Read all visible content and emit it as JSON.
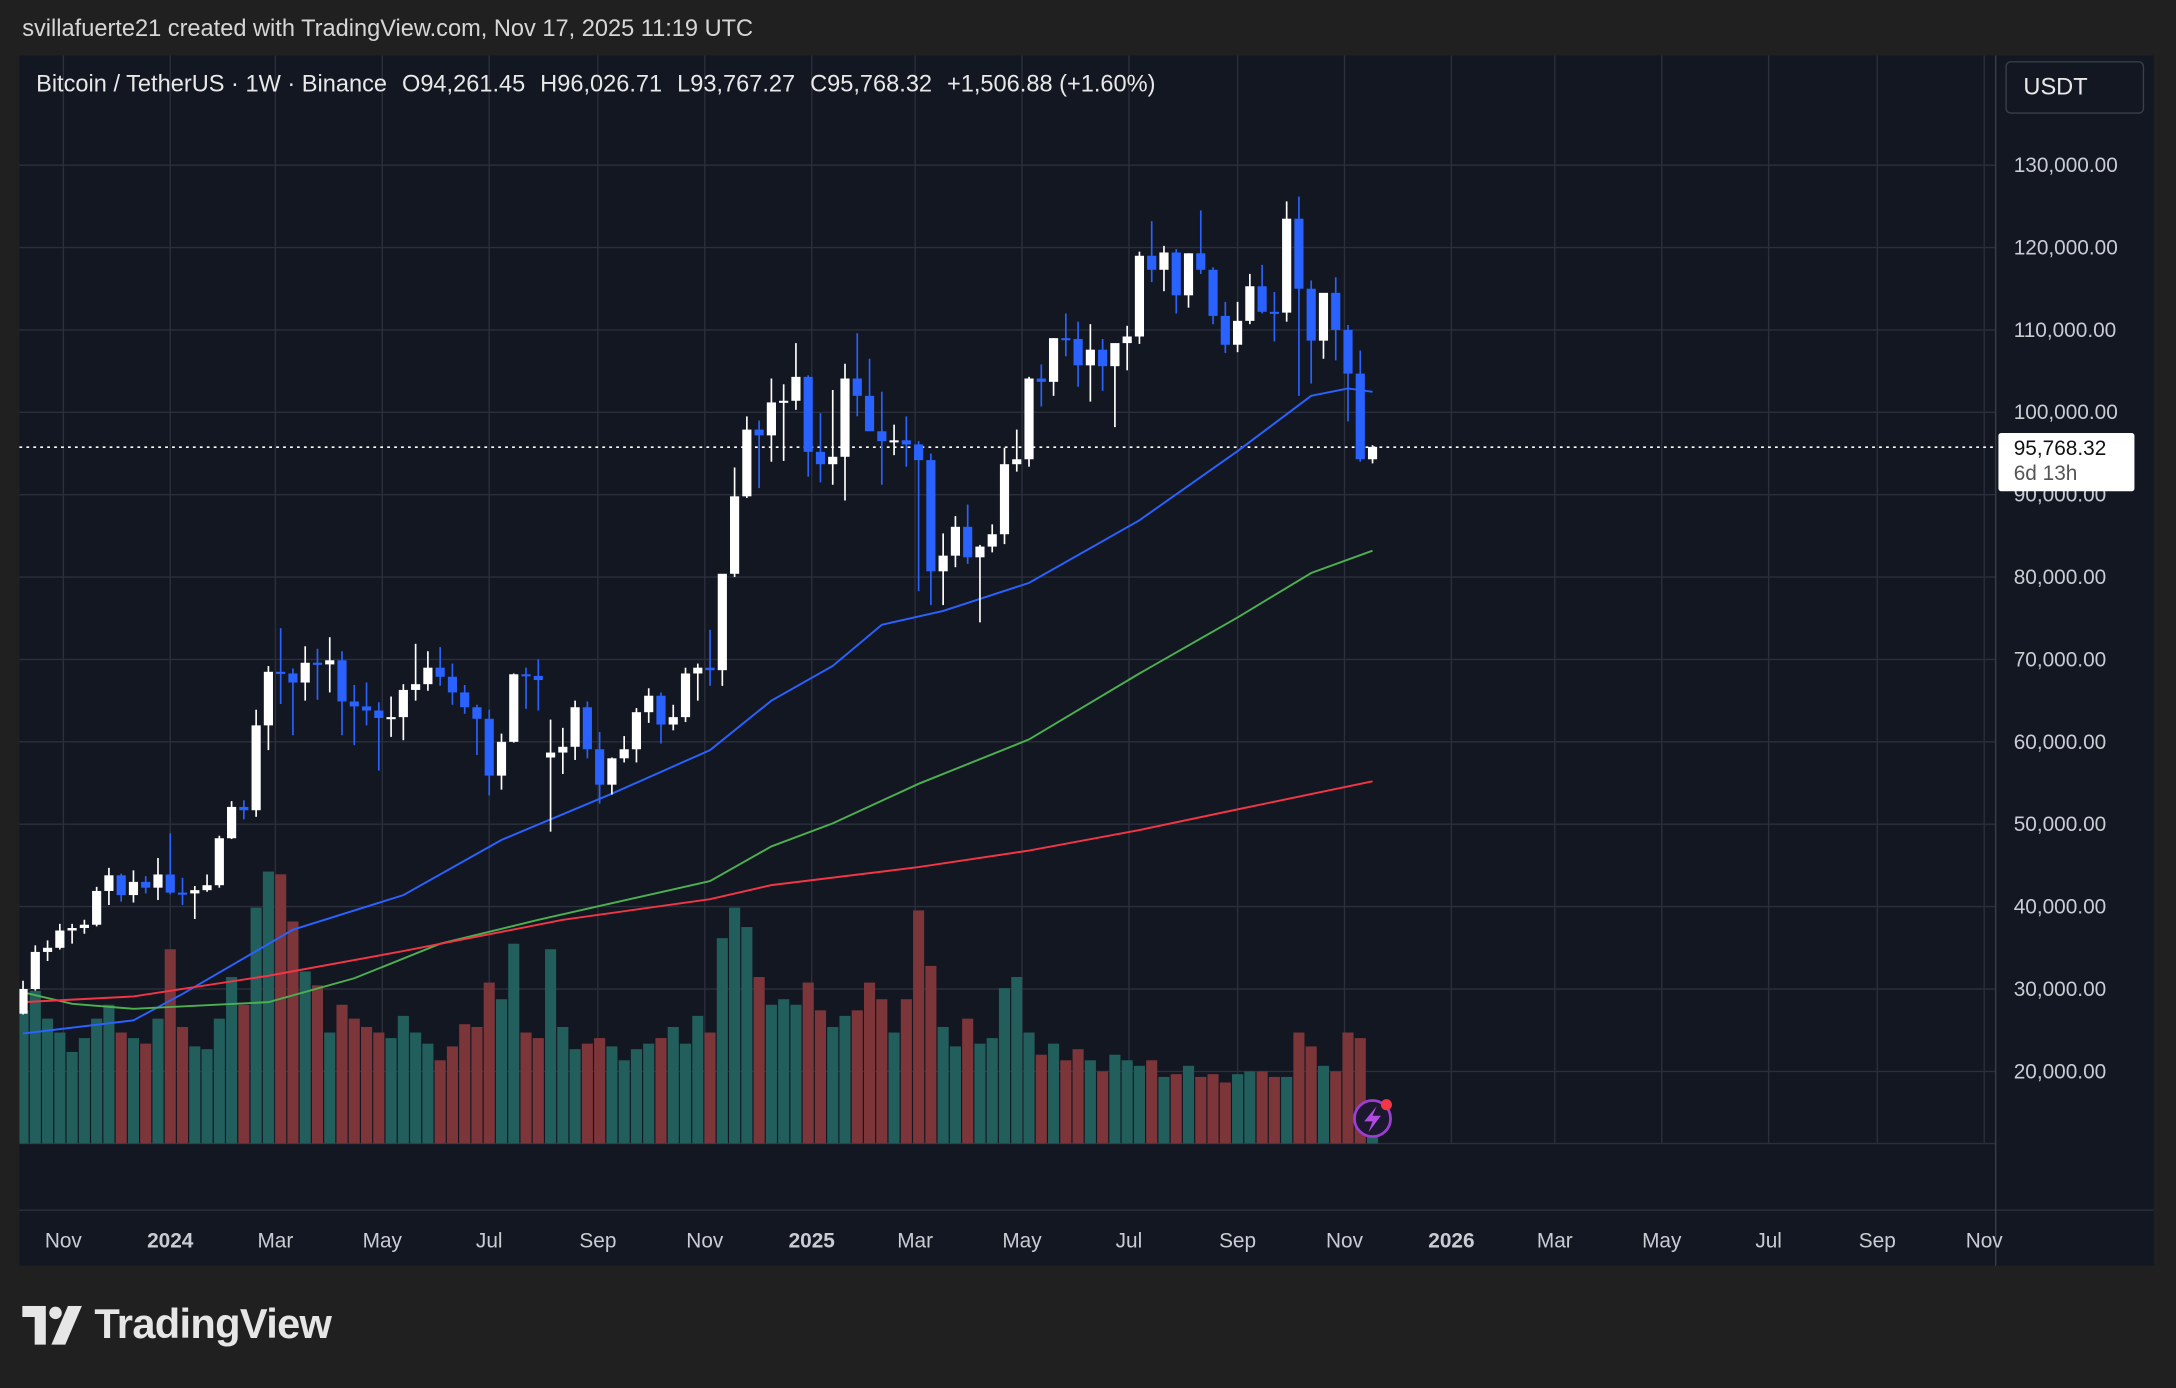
{
  "credit": "svillafuerte21 created with TradingView.com, Nov 17, 2025 11:19 UTC",
  "legend": {
    "symbol": "Bitcoin / TetherUS · 1W · Binance",
    "open": "O94,261.45",
    "high": "H96,026.71",
    "low": "L93,767.27",
    "close": "C95,768.32",
    "change": "+1,506.88 (+1.60%)"
  },
  "currency_button": "USDT",
  "last_price": {
    "value": "95,768.32",
    "countdown": "6d 13h"
  },
  "logo_text": "TradingView",
  "colors": {
    "background": "#131722",
    "candle_up": "#ffffff",
    "candle_down": "#2962ff",
    "volume_up": "#225e5c",
    "volume_down": "#7c3539",
    "ma_blue": "#2962ff",
    "ma_green": "#4caf50",
    "ma_red": "#f23645"
  },
  "alert_icon": "lightning-icon",
  "chart_data": {
    "type": "candlestick",
    "title": "",
    "interval": "1W",
    "first_week": "2023-09-18",
    "ylim": [
      10000,
      140000
    ],
    "y_ticks": [
      "130,000.00",
      "120,000.00",
      "110,000.00",
      "100,000.00",
      "90,000.00",
      "80,000.00",
      "70,000.00",
      "60,000.00",
      "50,000.00",
      "40,000.00",
      "30,000.00",
      "20,000.00"
    ],
    "x_ticks": [
      {
        "label": "Nov",
        "year": false,
        "date": "2023-11-01"
      },
      {
        "label": "2024",
        "year": true,
        "date": "2024-01-01"
      },
      {
        "label": "Mar",
        "year": false,
        "date": "2024-03-01"
      },
      {
        "label": "May",
        "year": false,
        "date": "2024-05-01"
      },
      {
        "label": "Jul",
        "year": false,
        "date": "2024-07-01"
      },
      {
        "label": "Sep",
        "year": false,
        "date": "2024-09-01"
      },
      {
        "label": "Nov",
        "year": false,
        "date": "2024-11-01"
      },
      {
        "label": "2025",
        "year": true,
        "date": "2025-01-01"
      },
      {
        "label": "Mar",
        "year": false,
        "date": "2025-03-01"
      },
      {
        "label": "May",
        "year": false,
        "date": "2025-05-01"
      },
      {
        "label": "Jul",
        "year": false,
        "date": "2025-07-01"
      },
      {
        "label": "Sep",
        "year": false,
        "date": "2025-09-01"
      },
      {
        "label": "Nov",
        "year": false,
        "date": "2025-11-01"
      },
      {
        "label": "2026",
        "year": true,
        "date": "2026-01-01"
      },
      {
        "label": "Mar",
        "year": false,
        "date": "2026-03-01"
      },
      {
        "label": "May",
        "year": false,
        "date": "2026-05-01"
      },
      {
        "label": "Jul",
        "year": false,
        "date": "2026-07-01"
      },
      {
        "label": "Sep",
        "year": false,
        "date": "2026-09-01"
      },
      {
        "label": "Nov",
        "year": false,
        "date": "2026-11-01"
      }
    ],
    "ohlc_thousands": [
      [
        26.9,
        28.0,
        26.6,
        27.9
      ],
      [
        27.9,
        28.6,
        27.4,
        27.6
      ],
      [
        27.6,
        28.1,
        26.6,
        27.0
      ],
      [
        27.0,
        31.0,
        26.9,
        30.0
      ],
      [
        30.0,
        35.3,
        29.8,
        34.5
      ],
      [
        34.5,
        35.9,
        33.4,
        35.0
      ],
      [
        35.0,
        37.9,
        34.8,
        37.1
      ],
      [
        37.1,
        37.9,
        35.5,
        37.4
      ],
      [
        37.4,
        38.4,
        36.7,
        37.8
      ],
      [
        37.8,
        42.4,
        37.6,
        41.9
      ],
      [
        41.9,
        44.7,
        40.2,
        43.8
      ],
      [
        43.8,
        44.0,
        40.6,
        41.4
      ],
      [
        41.4,
        44.4,
        40.5,
        43.0
      ],
      [
        43.0,
        43.7,
        41.6,
        42.3
      ],
      [
        42.3,
        45.9,
        40.8,
        43.9
      ],
      [
        43.9,
        48.9,
        41.5,
        41.7
      ],
      [
        41.7,
        43.5,
        40.2,
        41.6
      ],
      [
        41.6,
        42.5,
        38.5,
        42.0
      ],
      [
        42.0,
        43.9,
        41.8,
        42.6
      ],
      [
        42.6,
        48.6,
        42.3,
        48.3
      ],
      [
        48.3,
        52.8,
        48.2,
        52.1
      ],
      [
        52.1,
        52.9,
        50.6,
        51.7
      ],
      [
        51.7,
        63.9,
        50.9,
        62.0
      ],
      [
        62.0,
        69.2,
        59.0,
        68.5
      ],
      [
        68.5,
        73.8,
        64.6,
        68.3
      ],
      [
        68.3,
        68.9,
        60.8,
        67.2
      ],
      [
        67.2,
        71.6,
        65.0,
        69.6
      ],
      [
        69.6,
        71.3,
        65.1,
        69.4
      ],
      [
        69.4,
        72.7,
        66.0,
        69.9
      ],
      [
        69.9,
        71.0,
        60.8,
        64.9
      ],
      [
        64.9,
        66.9,
        59.6,
        64.3
      ],
      [
        64.3,
        67.2,
        62.0,
        63.8
      ],
      [
        63.8,
        64.8,
        56.5,
        62.9
      ],
      [
        62.9,
        65.5,
        60.6,
        63.0
      ],
      [
        63.0,
        67.0,
        60.2,
        66.3
      ],
      [
        66.3,
        71.9,
        65.0,
        67.0
      ],
      [
        67.0,
        71.0,
        66.2,
        69.0
      ],
      [
        69.0,
        71.5,
        66.8,
        67.9
      ],
      [
        67.9,
        69.5,
        64.5,
        66.0
      ],
      [
        66.0,
        66.9,
        63.4,
        64.2
      ],
      [
        64.2,
        64.5,
        58.4,
        62.8
      ],
      [
        62.8,
        63.9,
        53.5,
        55.9
      ],
      [
        55.9,
        61.0,
        54.2,
        60.0
      ],
      [
        60.0,
        68.3,
        59.9,
        68.2
      ],
      [
        68.2,
        69.0,
        64.0,
        68.0
      ],
      [
        68.0,
        70.0,
        63.8,
        67.5
      ],
      [
        58.1,
        62.7,
        49.1,
        58.7
      ],
      [
        58.7,
        61.7,
        56.1,
        59.4
      ],
      [
        59.4,
        65.0,
        57.8,
        64.2
      ],
      [
        64.2,
        64.9,
        58.0,
        59.1
      ],
      [
        59.1,
        61.2,
        52.5,
        54.8
      ],
      [
        54.8,
        58.1,
        53.6,
        58.0
      ],
      [
        58.0,
        60.7,
        57.5,
        59.1
      ],
      [
        59.1,
        64.1,
        57.5,
        63.6
      ],
      [
        63.6,
        66.5,
        62.3,
        65.6
      ],
      [
        65.6,
        66.0,
        59.8,
        62.1
      ],
      [
        62.1,
        64.5,
        61.4,
        63.0
      ],
      [
        63.0,
        69.0,
        62.4,
        68.3
      ],
      [
        68.3,
        69.5,
        65.0,
        69.0
      ],
      [
        69.0,
        73.6,
        66.8,
        68.7
      ],
      [
        68.7,
        80.3,
        66.8,
        80.4
      ],
      [
        80.4,
        93.3,
        80.0,
        89.8
      ],
      [
        89.8,
        99.5,
        89.6,
        97.9
      ],
      [
        97.9,
        99.0,
        90.8,
        97.2
      ],
      [
        97.2,
        104.1,
        94.0,
        101.2
      ],
      [
        101.2,
        103.4,
        94.1,
        101.4
      ],
      [
        101.4,
        108.4,
        100.3,
        104.3
      ],
      [
        104.3,
        104.5,
        92.2,
        95.2
      ],
      [
        95.2,
        99.9,
        91.5,
        93.7
      ],
      [
        93.7,
        102.7,
        91.2,
        94.6
      ],
      [
        94.6,
        105.9,
        89.3,
        104.1
      ],
      [
        104.1,
        109.6,
        99.5,
        102.0
      ],
      [
        102.0,
        106.5,
        97.8,
        97.7
      ],
      [
        97.7,
        102.5,
        91.2,
        96.5
      ],
      [
        96.5,
        98.5,
        94.8,
        96.6
      ],
      [
        96.6,
        99.5,
        93.4,
        96.1
      ],
      [
        96.1,
        96.5,
        78.3,
        94.2
      ],
      [
        94.2,
        95.0,
        76.6,
        80.7
      ],
      [
        80.7,
        85.3,
        76.6,
        82.6
      ],
      [
        82.6,
        87.4,
        81.2,
        86.1
      ],
      [
        86.1,
        88.8,
        81.6,
        82.4
      ],
      [
        82.4,
        83.9,
        74.5,
        83.7
      ],
      [
        83.7,
        86.4,
        83.0,
        85.2
      ],
      [
        85.2,
        95.7,
        84.0,
        93.7
      ],
      [
        93.7,
        97.9,
        92.8,
        94.3
      ],
      [
        94.3,
        104.3,
        93.4,
        104.1
      ],
      [
        104.1,
        105.8,
        100.7,
        103.7
      ],
      [
        103.7,
        109.0,
        102.0,
        109.0
      ],
      [
        109.0,
        112.0,
        106.8,
        108.9
      ],
      [
        108.9,
        111.0,
        103.1,
        105.7
      ],
      [
        105.7,
        110.7,
        101.3,
        107.6
      ],
      [
        107.6,
        108.9,
        102.6,
        105.6
      ],
      [
        105.6,
        106.5,
        98.2,
        108.4
      ],
      [
        108.4,
        110.5,
        105.1,
        109.2
      ],
      [
        109.2,
        119.5,
        108.3,
        119.0
      ],
      [
        119.0,
        123.2,
        115.8,
        117.3
      ],
      [
        117.3,
        120.2,
        114.7,
        119.4
      ],
      [
        119.4,
        119.8,
        112.0,
        114.2
      ],
      [
        114.2,
        119.3,
        112.7,
        119.3
      ],
      [
        119.3,
        124.5,
        116.8,
        117.3
      ],
      [
        117.3,
        117.6,
        110.7,
        111.7
      ],
      [
        111.7,
        113.4,
        107.2,
        108.2
      ],
      [
        108.2,
        113.4,
        107.3,
        111.1
      ],
      [
        111.1,
        116.8,
        110.7,
        115.3
      ],
      [
        115.3,
        117.9,
        112.0,
        112.2
      ],
      [
        112.2,
        114.6,
        108.6,
        112.1
      ],
      [
        112.1,
        125.6,
        111.0,
        123.5
      ],
      [
        123.5,
        126.2,
        102.0,
        115.0
      ],
      [
        115.0,
        116.0,
        103.5,
        108.7
      ],
      [
        108.7,
        114.0,
        106.5,
        114.5
      ],
      [
        114.5,
        116.4,
        106.3,
        110.0
      ],
      [
        110.0,
        110.6,
        98.9,
        104.7
      ],
      [
        104.7,
        107.5,
        94.0,
        94.3
      ],
      [
        94.3,
        96.0,
        93.8,
        95.8
      ]
    ],
    "volume_relative": [
      30,
      32,
      30,
      48,
      55,
      45,
      40,
      33,
      38,
      45,
      50,
      40,
      38,
      36,
      45,
      70,
      42,
      35,
      34,
      45,
      60,
      50,
      85,
      98,
      97,
      80,
      62,
      57,
      40,
      50,
      45,
      42,
      40,
      38,
      46,
      40,
      36,
      30,
      35,
      43,
      42,
      58,
      52,
      72,
      40,
      38,
      70,
      42,
      34,
      36,
      38,
      35,
      30,
      34,
      36,
      38,
      42,
      36,
      46,
      40,
      74,
      85,
      78,
      60,
      50,
      52,
      50,
      58,
      48,
      42,
      46,
      48,
      58,
      52,
      40,
      52,
      84,
      64,
      42,
      35,
      45,
      36,
      38,
      56,
      60,
      40,
      32,
      36,
      30,
      34,
      30,
      26,
      32,
      30,
      28,
      30,
      24,
      25,
      28,
      24,
      25,
      22,
      25,
      26,
      26,
      24,
      24,
      40,
      35,
      28,
      26,
      40,
      38,
      8
    ],
    "moving_averages": [
      {
        "color": "blue",
        "points": [
          [
            "2023-10-09",
            24.6
          ],
          [
            "2023-12-11",
            26.2
          ],
          [
            "2024-01-08",
            29.4
          ],
          [
            "2024-03-11",
            37.2
          ],
          [
            "2024-05-13",
            41.4
          ],
          [
            "2024-07-08",
            48.1
          ],
          [
            "2024-09-09",
            53.7
          ],
          [
            "2024-11-04",
            59.0
          ],
          [
            "2024-12-09",
            65.0
          ],
          [
            "2025-01-13",
            69.2
          ],
          [
            "2025-02-10",
            74.2
          ],
          [
            "2025-03-17",
            75.9
          ],
          [
            "2025-05-05",
            79.3
          ],
          [
            "2025-07-07",
            86.9
          ],
          [
            "2025-09-01",
            95.3
          ],
          [
            "2025-10-13",
            102.0
          ],
          [
            "2025-11-03",
            102.9
          ],
          [
            "2025-11-17",
            102.5
          ]
        ]
      },
      {
        "color": "green",
        "points": [
          [
            "2023-10-09",
            29.6
          ],
          [
            "2023-11-06",
            28.2
          ],
          [
            "2023-12-11",
            27.6
          ],
          [
            "2024-02-26",
            28.4
          ],
          [
            "2024-04-15",
            31.3
          ],
          [
            "2024-06-03",
            35.5
          ],
          [
            "2024-07-29",
            38.4
          ],
          [
            "2024-11-04",
            43.1
          ],
          [
            "2024-12-09",
            47.3
          ],
          [
            "2025-01-13",
            50.1
          ],
          [
            "2025-03-03",
            54.9
          ],
          [
            "2025-05-05",
            60.3
          ],
          [
            "2025-07-07",
            68.3
          ],
          [
            "2025-09-01",
            75.1
          ],
          [
            "2025-10-13",
            80.5
          ],
          [
            "2025-11-17",
            83.2
          ]
        ]
      },
      {
        "color": "red",
        "points": [
          [
            "2023-10-09",
            28.4
          ],
          [
            "2023-12-11",
            29.1
          ],
          [
            "2024-02-26",
            31.6
          ],
          [
            "2024-05-13",
            34.6
          ],
          [
            "2024-08-12",
            38.4
          ],
          [
            "2024-11-04",
            40.9
          ],
          [
            "2024-12-09",
            42.6
          ],
          [
            "2025-03-03",
            44.8
          ],
          [
            "2025-05-05",
            46.8
          ],
          [
            "2025-07-07",
            49.3
          ],
          [
            "2025-09-01",
            51.8
          ],
          [
            "2025-11-17",
            55.2
          ]
        ]
      }
    ],
    "last_price": 95768.32
  }
}
